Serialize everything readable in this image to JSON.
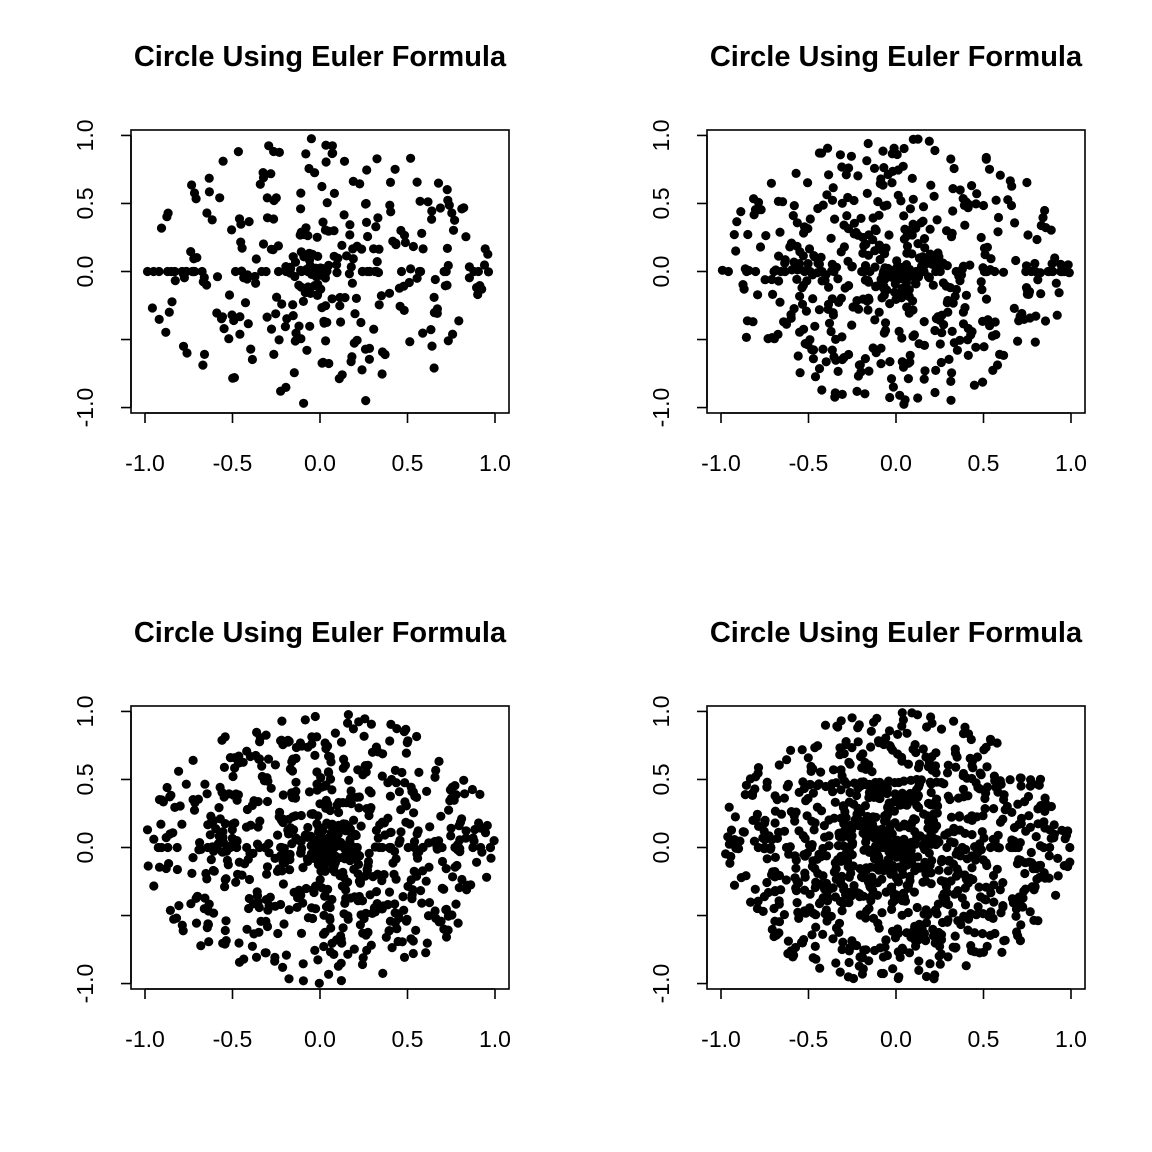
{
  "chart_data": [
    {
      "type": "scatter",
      "title": "Circle Using Euler Formula",
      "xlabel": "",
      "ylabel": "",
      "xlim": [
        -1.08,
        1.08
      ],
      "ylim": [
        -1.04,
        1.04
      ],
      "xticks": [
        -1.0,
        -0.5,
        0.0,
        0.5,
        1.0
      ],
      "xtick_labels": [
        "-1.0",
        "-0.5",
        "0.0",
        "0.5",
        "1.0"
      ],
      "yticks": [
        -1.0,
        -0.5,
        0.0,
        0.5,
        1.0
      ],
      "ytick_labels": [
        "-1.0",
        "",
        "0.0",
        "0.5",
        "1.0"
      ],
      "grid": false,
      "series": [
        {
          "x": [],
          "y": []
        }
      ],
      "generator": {
        "points": 300,
        "axis_points": 40
      }
    },
    {
      "type": "scatter",
      "title": "Circle Using Euler Formula",
      "xlabel": "",
      "ylabel": "",
      "xlim": [
        -1.08,
        1.08
      ],
      "ylim": [
        -1.04,
        1.04
      ],
      "xticks": [
        -1.0,
        -0.5,
        0.0,
        0.5,
        1.0
      ],
      "xtick_labels": [
        "-1.0",
        "-0.5",
        "0.0",
        "0.5",
        "1.0"
      ],
      "yticks": [
        -1.0,
        -0.5,
        0.0,
        0.5,
        1.0
      ],
      "ytick_labels": [
        "-1.0",
        "",
        "0.0",
        "0.5",
        "1.0"
      ],
      "grid": false,
      "series": [
        {
          "x": [],
          "y": []
        }
      ],
      "generator": {
        "points": 500,
        "axis_points": 40
      }
    },
    {
      "type": "scatter",
      "title": "Circle Using Euler Formula",
      "xlabel": "",
      "ylabel": "",
      "xlim": [
        -1.08,
        1.08
      ],
      "ylim": [
        -1.04,
        1.04
      ],
      "xticks": [
        -1.0,
        -0.5,
        0.0,
        0.5,
        1.0
      ],
      "xtick_labels": [
        "-1.0",
        "-0.5",
        "0.0",
        "0.5",
        "1.0"
      ],
      "yticks": [
        -1.0,
        -0.5,
        0.0,
        0.5,
        1.0
      ],
      "ytick_labels": [
        "-1.0",
        "",
        "0.0",
        "0.5",
        "1.0"
      ],
      "grid": false,
      "series": [
        {
          "x": [],
          "y": []
        }
      ],
      "generator": {
        "points": 700,
        "axis_points": 34
      }
    },
    {
      "type": "scatter",
      "title": "Circle Using Euler Formula",
      "xlabel": "",
      "ylabel": "",
      "xlim": [
        -1.08,
        1.08
      ],
      "ylim": [
        -1.04,
        1.04
      ],
      "xticks": [
        -1.0,
        -0.5,
        0.0,
        0.5,
        1.0
      ],
      "xtick_labels": [
        "-1.0",
        "-0.5",
        "0.0",
        "0.5",
        "1.0"
      ],
      "yticks": [
        -1.0,
        -0.5,
        0.0,
        0.5,
        1.0
      ],
      "ytick_labels": [
        "-1.0",
        "",
        "0.0",
        "0.5",
        "1.0"
      ],
      "grid": false,
      "series": [
        {
          "x": [],
          "y": []
        }
      ],
      "generator": {
        "points": 1000,
        "axis_points": 20
      }
    }
  ]
}
